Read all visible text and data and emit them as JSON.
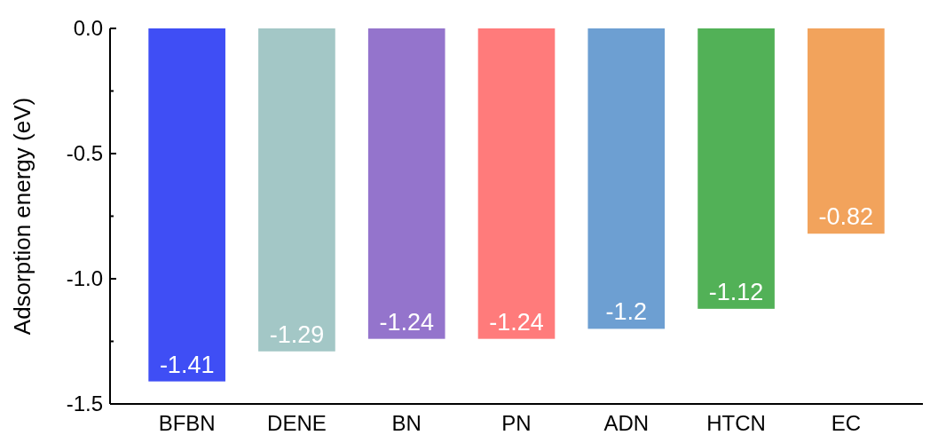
{
  "chart_data": {
    "type": "bar",
    "ylabel": "Adsorption energy (eV)",
    "categories": [
      "BFBN",
      "DENE",
      "BN",
      "PN",
      "ADN",
      "HTCN",
      "EC"
    ],
    "values": [
      -1.41,
      -1.29,
      -1.24,
      -1.24,
      -1.2,
      -1.12,
      -0.82
    ],
    "colors": [
      "#3f4ef5",
      "#a3c7c6",
      "#9474cc",
      "#ff7b7b",
      "#6d9fd2",
      "#52b157",
      "#f2a35c"
    ],
    "data_labels": true,
    "ylim": [
      -1.5,
      0
    ],
    "yticks": [
      {
        "value": 0,
        "label": "0.0"
      },
      {
        "value": -0.25,
        "label": null
      },
      {
        "value": -0.5,
        "label": "-0.5"
      },
      {
        "value": -0.75,
        "label": null
      },
      {
        "value": -1,
        "label": "-1.0"
      },
      {
        "value": -1.25,
        "label": null
      },
      {
        "value": -1.5,
        "label": "-1.5"
      }
    ],
    "grid": false
  }
}
